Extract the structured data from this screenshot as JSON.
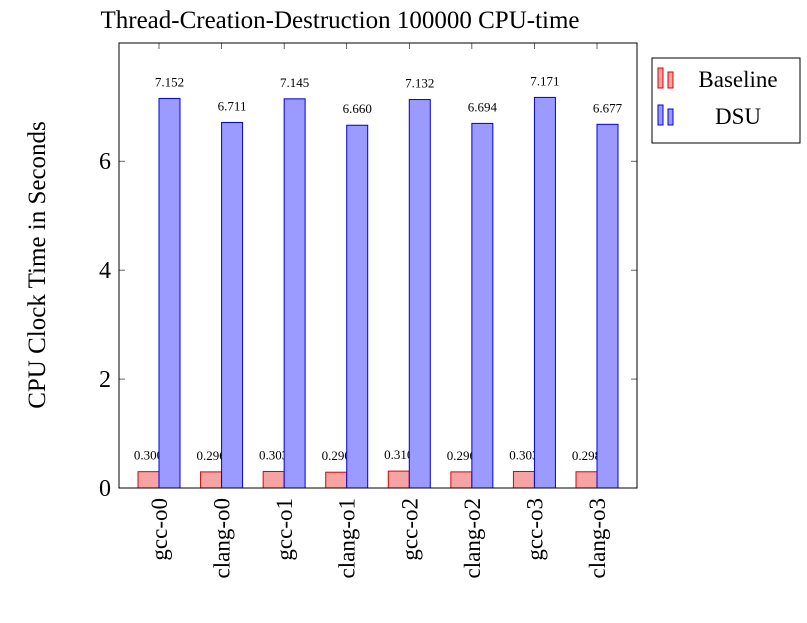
{
  "chart_data": {
    "type": "bar",
    "title": "Thread-Creation-Destruction 100000 CPU-time",
    "ylabel": "CPU Clock Time in Seconds",
    "categories": [
      "gcc-o0",
      "clang-o0",
      "gcc-o1",
      "clang-o1",
      "gcc-o2",
      "clang-o2",
      "gcc-o3",
      "clang-o3"
    ],
    "series": [
      {
        "name": "Baseline",
        "color": "#f5a3a3",
        "edge": "#e00000",
        "values": [
          0.3,
          0.296,
          0.303,
          0.29,
          0.31,
          0.296,
          0.303,
          0.298
        ],
        "value_labels": [
          "0.300",
          "0.296",
          "0.303",
          "0.290",
          "0.310",
          "0.296",
          "0.303",
          "0.298"
        ]
      },
      {
        "name": "DSU",
        "color": "#9a9aff",
        "edge": "#0000e0",
        "values": [
          7.152,
          6.711,
          7.145,
          6.66,
          7.132,
          6.694,
          7.171,
          6.677
        ],
        "value_labels": [
          "7.152",
          "6.711",
          "7.145",
          "6.660",
          "7.132",
          "6.694",
          "7.171",
          "6.677"
        ]
      }
    ],
    "ylim": [
      0,
      8.17
    ],
    "yticks": [
      0,
      2,
      4,
      6
    ],
    "legend": "outside-right-top"
  }
}
